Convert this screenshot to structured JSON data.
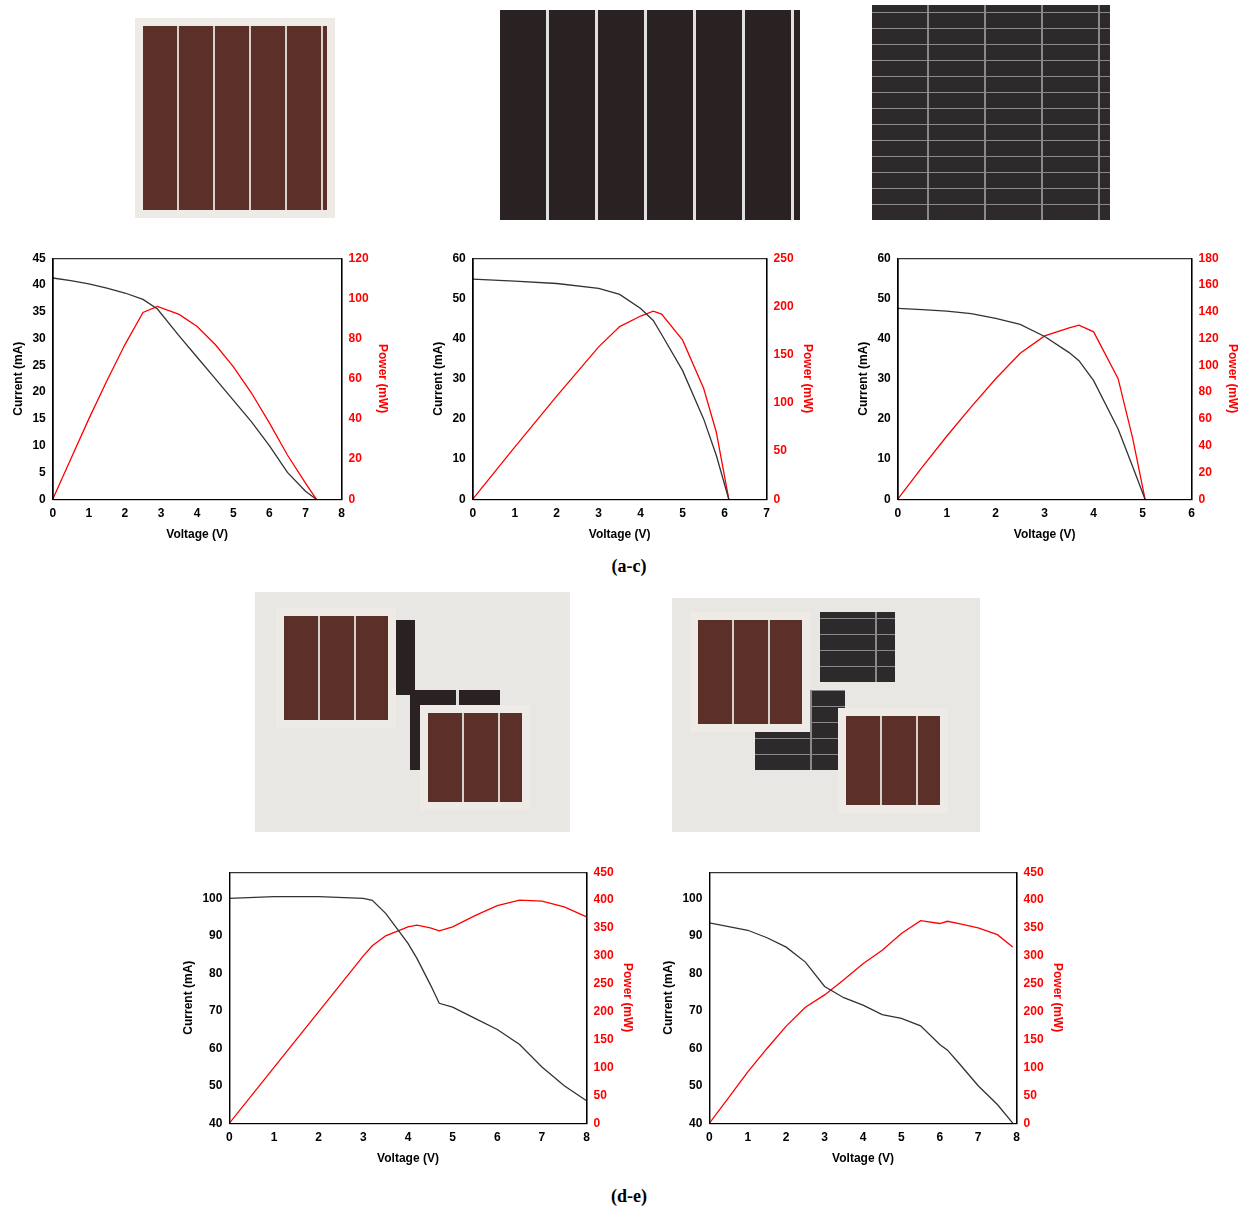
{
  "panel_labels": [
    "(a-c)",
    "(d-e)"
  ],
  "chart_data": [
    {
      "type": "line",
      "xlabel": "Voltage (V)",
      "ylabel": "Current (mA)",
      "y2label": "Power (mW)",
      "grid": false,
      "x": [
        0,
        0.5,
        1,
        1.5,
        2,
        2.5,
        2.9,
        3.5,
        4,
        4.5,
        5,
        5.5,
        6,
        6.5,
        7,
        7.3
      ],
      "xlim": [
        0,
        8
      ],
      "xticks": [
        0,
        1,
        2,
        3,
        4,
        5,
        6,
        7,
        8
      ],
      "ylim": [
        0,
        45
      ],
      "yticks": [
        0,
        5,
        10,
        15,
        20,
        25,
        30,
        35,
        40,
        45
      ],
      "y2lim": [
        0,
        120
      ],
      "y2ticks": [
        0,
        20,
        40,
        60,
        80,
        100,
        120
      ],
      "series": [
        {
          "color": "#333333",
          "values": [
            41.3,
            40.8,
            40.2,
            39.4,
            38.5,
            37.3,
            35.5,
            30.5,
            26.5,
            22.5,
            18.5,
            14.5,
            10,
            5,
            1.5,
            0
          ]
        },
        {
          "color": "#ff0000",
          "axis": "y2",
          "values": [
            0,
            20,
            40,
            59,
            77,
            93,
            96,
            92,
            86,
            77,
            66,
            53,
            38,
            22,
            8,
            0
          ]
        }
      ]
    },
    {
      "type": "line",
      "xlabel": "Voltage (V)",
      "ylabel": "Current (mA)",
      "y2label": "Power (mW)",
      "grid": false,
      "x": [
        0,
        1,
        2,
        3,
        3.5,
        4,
        4.3,
        4.5,
        5,
        5.5,
        5.8,
        6.1
      ],
      "xlim": [
        0,
        7
      ],
      "xticks": [
        0,
        1,
        2,
        3,
        4,
        5,
        6,
        7
      ],
      "ylim": [
        0,
        60
      ],
      "yticks": [
        0,
        10,
        20,
        30,
        40,
        50,
        60
      ],
      "y2lim": [
        0,
        250
      ],
      "y2ticks": [
        0,
        50,
        100,
        150,
        200,
        250
      ],
      "series": [
        {
          "color": "#333333",
          "values": [
            54.8,
            54.3,
            53.7,
            52.5,
            51,
            47.5,
            44.5,
            41,
            32,
            20,
            11,
            0
          ]
        },
        {
          "color": "#ff0000",
          "axis": "y2",
          "values": [
            0,
            54,
            107,
            158,
            179,
            190,
            195,
            192,
            165,
            115,
            70,
            0
          ]
        }
      ]
    },
    {
      "type": "line",
      "xlabel": "Voltage (V)",
      "ylabel": "Current (mA)",
      "y2label": "Power (mW)",
      "grid": false,
      "x": [
        0,
        0.5,
        1,
        1.5,
        2,
        2.5,
        3,
        3.5,
        3.7,
        4,
        4.5,
        4.8,
        5.05
      ],
      "xlim": [
        0,
        6
      ],
      "xticks": [
        0,
        1,
        2,
        3,
        4,
        5,
        6
      ],
      "ylim": [
        0,
        60
      ],
      "yticks": [
        0,
        10,
        20,
        30,
        40,
        50,
        60
      ],
      "y2lim": [
        0,
        180
      ],
      "y2ticks": [
        0,
        20,
        40,
        60,
        80,
        100,
        120,
        140,
        160,
        180
      ],
      "series": [
        {
          "color": "#333333",
          "values": [
            47.5,
            47.2,
            46.8,
            46.2,
            45,
            43.5,
            40.5,
            36.5,
            34.5,
            29.5,
            17.5,
            8,
            0
          ]
        },
        {
          "color": "#ff0000",
          "axis": "y2",
          "values": [
            0,
            24,
            47,
            69,
            90,
            109,
            122,
            128,
            130,
            125,
            90,
            45,
            0
          ]
        }
      ]
    },
    {
      "type": "line",
      "xlabel": "Voltage (V)",
      "ylabel": "Current (mA)",
      "y2label": "Power (mW)",
      "grid": false,
      "x": [
        0,
        1,
        2,
        3,
        3.2,
        3.5,
        4,
        4.2,
        4.5,
        4.7,
        5,
        5.5,
        6,
        6.5,
        7,
        7.5,
        8
      ],
      "xlim": [
        0,
        8
      ],
      "xticks": [
        0,
        1,
        2,
        3,
        4,
        5,
        6,
        7,
        8
      ],
      "ylim": [
        40,
        107
      ],
      "yticks": [
        40,
        50,
        60,
        70,
        80,
        90,
        100
      ],
      "y2lim": [
        0,
        450
      ],
      "y2ticks": [
        0,
        50,
        100,
        150,
        200,
        250,
        300,
        350,
        400,
        450
      ],
      "series": [
        {
          "color": "#333333",
          "values": [
            100,
            100.5,
            100.5,
            100,
            99.5,
            96,
            88,
            84,
            77,
            72,
            71,
            68,
            65,
            61,
            55,
            50,
            46
          ]
        },
        {
          "color": "#ff0000",
          "axis": "y2",
          "values": [
            0,
            100,
            200,
            300,
            318,
            336,
            352,
            355,
            350,
            345,
            352,
            372,
            390,
            400,
            398,
            388,
            370
          ]
        }
      ]
    },
    {
      "type": "line",
      "xlabel": "Voltage (V)",
      "ylabel": "Current (mA)",
      "y2label": "Power (mW)",
      "grid": false,
      "x": [
        0,
        0.5,
        1,
        1.5,
        2,
        2.5,
        3,
        3.5,
        4,
        4.5,
        5,
        5.5,
        6,
        6.2,
        6.5,
        7,
        7.5,
        7.9
      ],
      "xlim": [
        0,
        8
      ],
      "xticks": [
        0,
        1,
        2,
        3,
        4,
        5,
        6,
        7,
        8
      ],
      "ylim": [
        40,
        107
      ],
      "yticks": [
        40,
        50,
        60,
        70,
        80,
        90,
        100
      ],
      "y2lim": [
        0,
        450
      ],
      "y2ticks": [
        0,
        50,
        100,
        150,
        200,
        250,
        300,
        350,
        400,
        450
      ],
      "series": [
        {
          "color": "#333333",
          "values": [
            93.5,
            92.5,
            91.5,
            89.5,
            87,
            83,
            76.5,
            73.5,
            71.5,
            69,
            68,
            66,
            61,
            59.5,
            56,
            50,
            45,
            40
          ]
        },
        {
          "color": "#ff0000",
          "axis": "y2",
          "values": [
            0,
            46,
            92,
            134,
            174,
            208,
            230,
            257,
            286,
            310,
            340,
            363,
            358,
            362,
            358,
            350,
            338,
            316
          ]
        }
      ]
    }
  ]
}
